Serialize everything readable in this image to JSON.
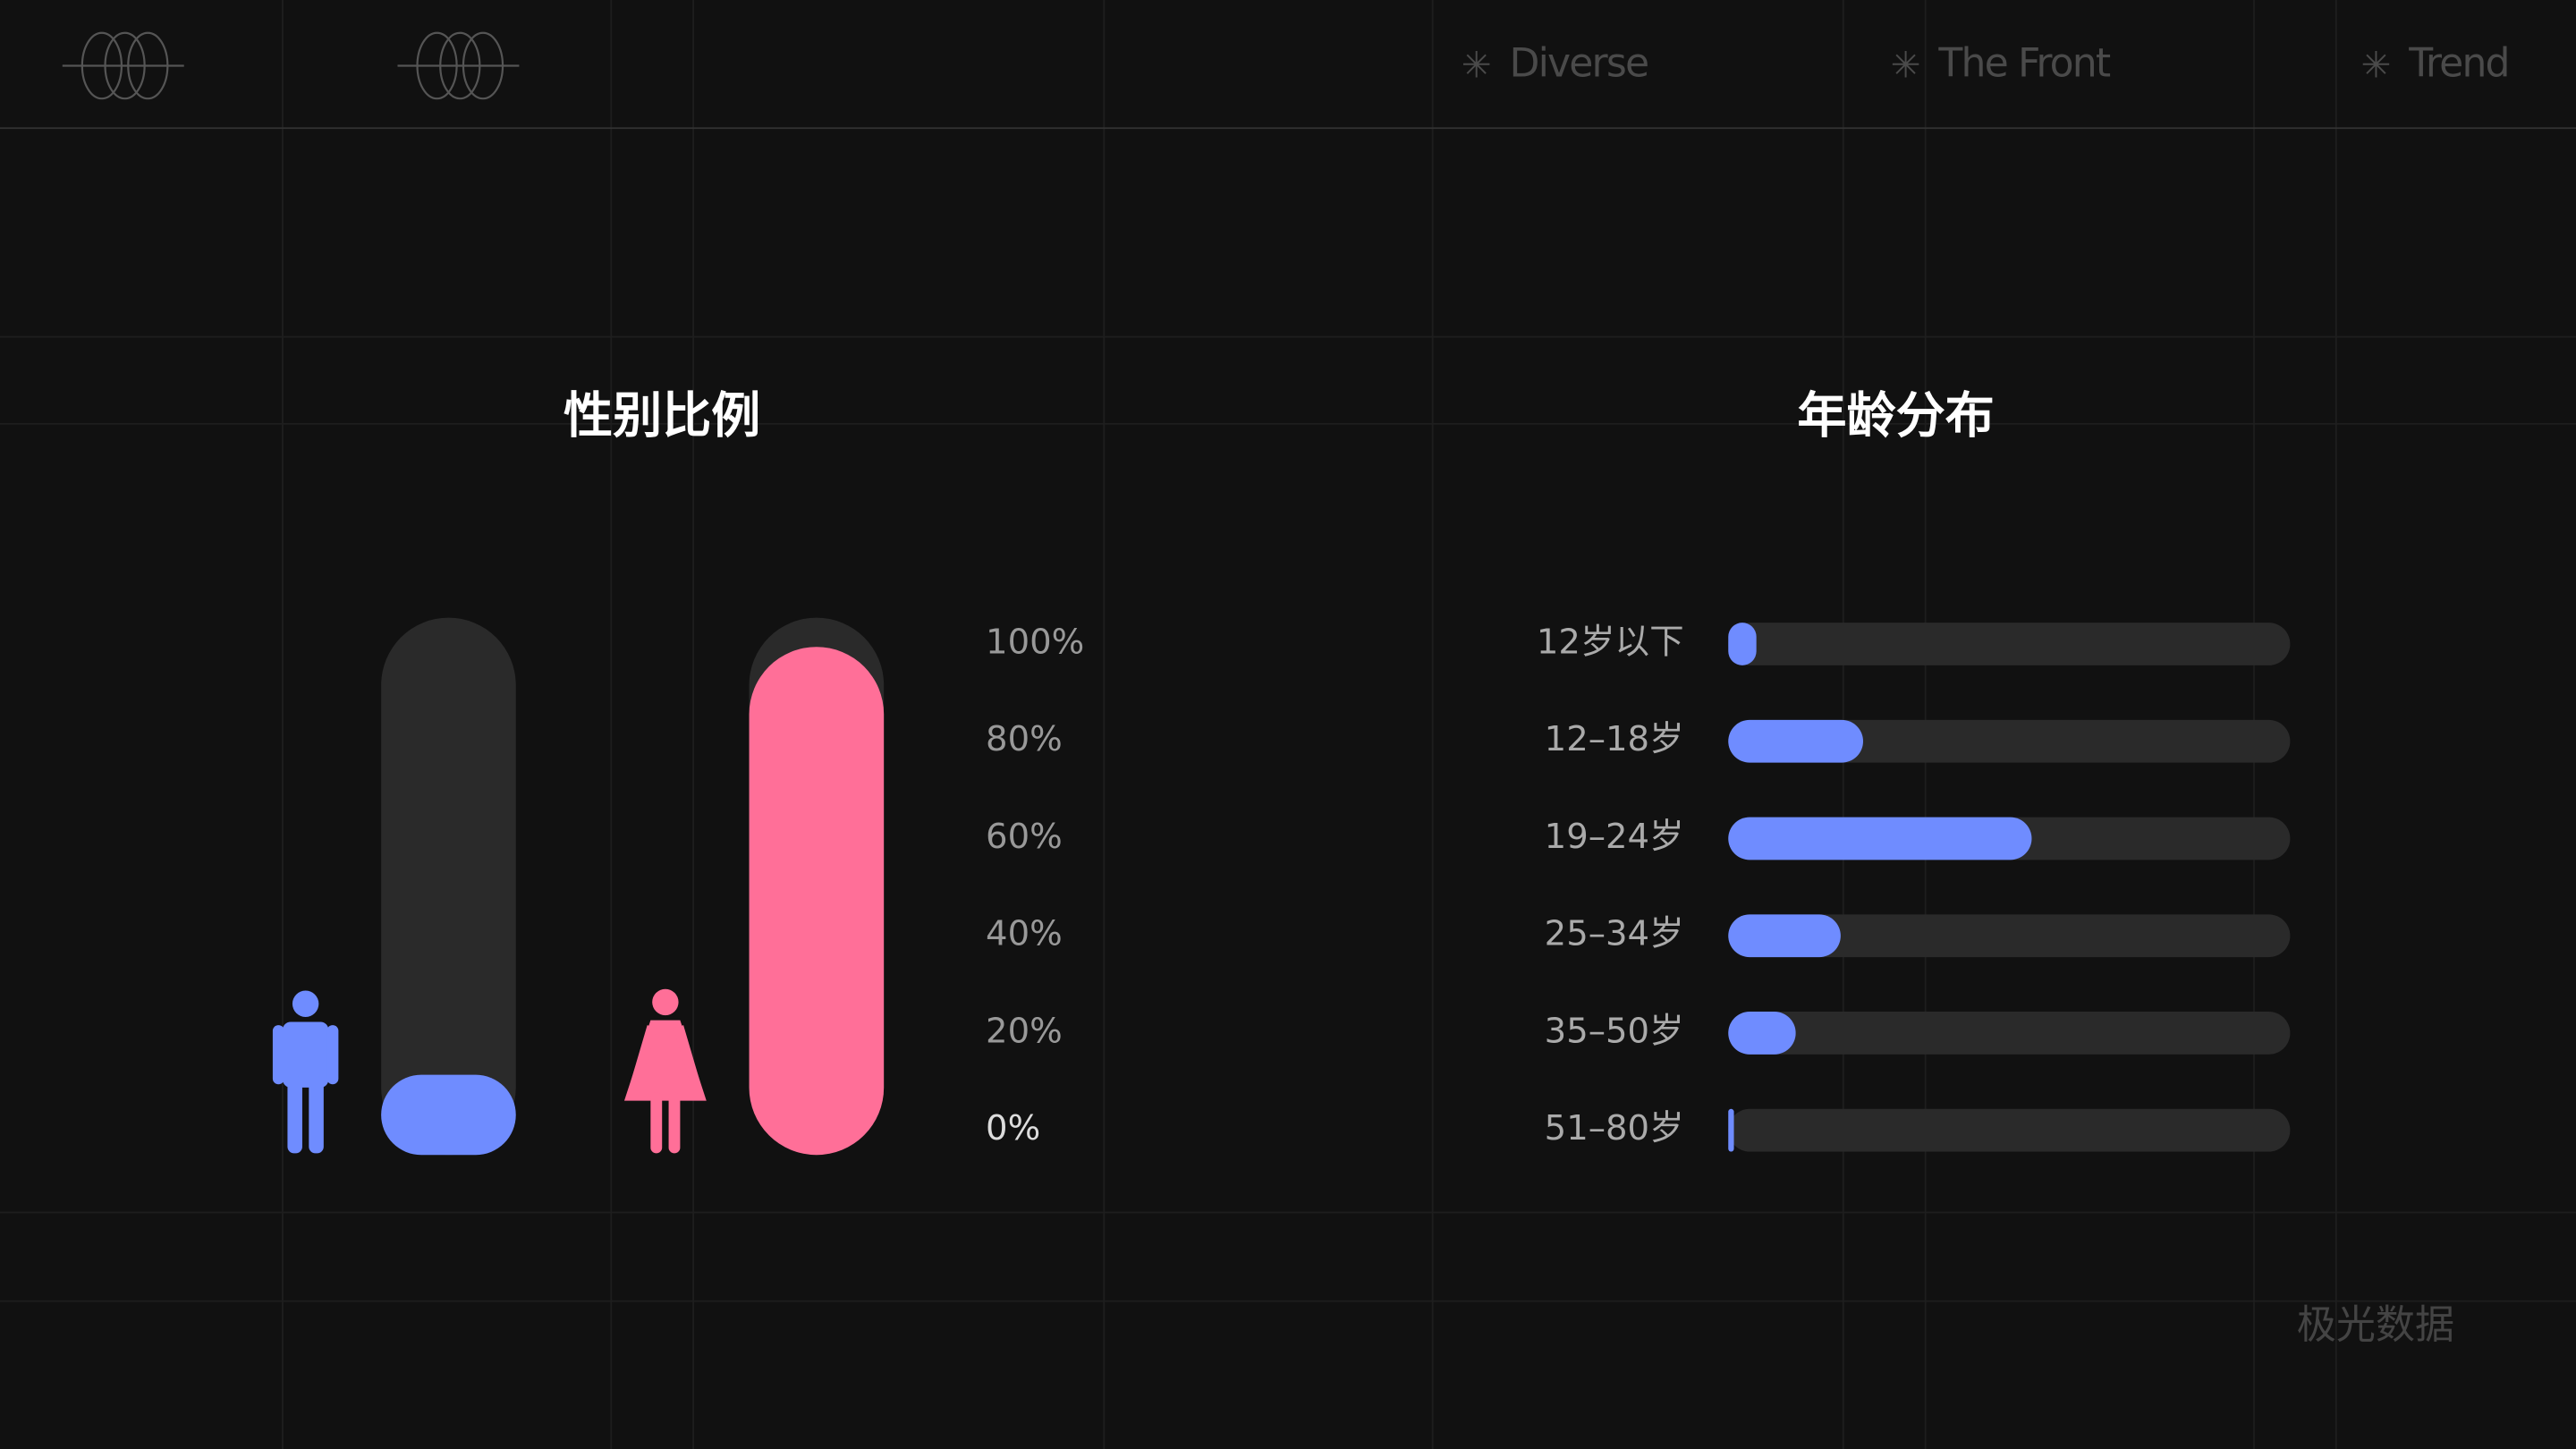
{
  "header": {
    "tags": [
      "Diverse",
      "The Front",
      "Trend"
    ]
  },
  "chart_data": [
    {
      "type": "bar",
      "orientation": "vertical",
      "title": "性别比例",
      "categories": [
        null,
        null
      ],
      "values": [
        6,
        94
      ],
      "colors": [
        "#6f8cff",
        "#ff6f98"
      ],
      "track_color": "#2a2a2a",
      "ylim": [
        0,
        100
      ],
      "yticks": [
        {
          "value": 0,
          "label": "0%"
        },
        {
          "value": 20,
          "label": "20%"
        },
        {
          "value": 40,
          "label": "40%"
        },
        {
          "value": 60,
          "label": "60%"
        },
        {
          "value": 80,
          "label": "80%"
        },
        {
          "value": 100,
          "label": "100%"
        }
      ]
    },
    {
      "type": "bar",
      "orientation": "horizontal",
      "title": "年龄分布",
      "categories": [
        "12岁以下",
        "12–18岁",
        "19–24岁",
        "25–34岁",
        "35–50岁",
        "51–80岁"
      ],
      "values": [
        5,
        24,
        54,
        20,
        12,
        1
      ],
      "color": "#6f8cff",
      "track_color": "#2a2a2a",
      "xlim": [
        0,
        100
      ]
    }
  ],
  "watermark": "极光数据"
}
